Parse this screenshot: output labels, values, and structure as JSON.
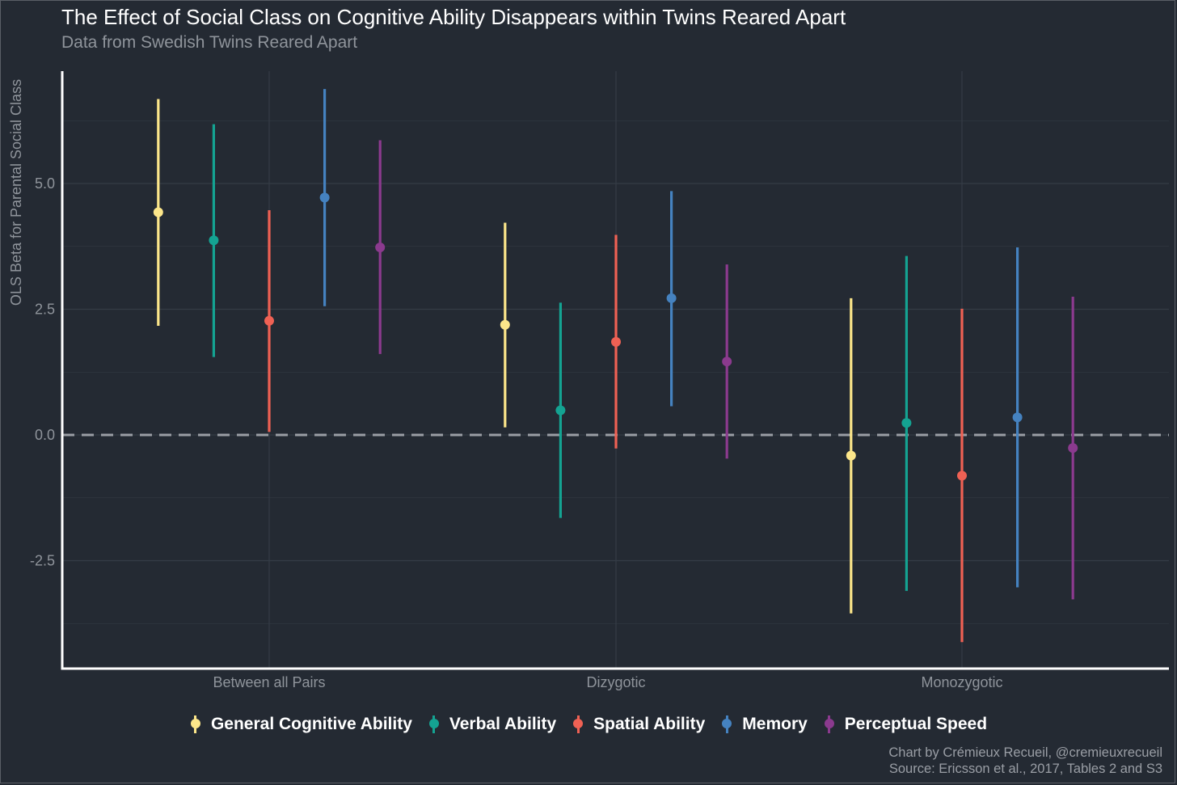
{
  "title": "The Effect of Social Class on Cognitive Ability Disappears within Twins Reared Apart",
  "subtitle": "Data from Swedish Twins Reared Apart",
  "caption": {
    "line1": "Chart by Crémieux Recueil, @cremieuxrecueil",
    "line2": "Source: Ericsson et al., 2017, Tables 2 and S3"
  },
  "colors": {
    "background": "#242a33",
    "grid": "#353c46",
    "axis": "#ffffff",
    "reference_line": "#9a9ea5"
  },
  "chart_data": {
    "type": "scatter",
    "subtype": "point-range (estimate with interval)",
    "title": "The Effect of Social Class on Cognitive Ability Disappears within Twins Reared Apart",
    "subtitle": "Data from Swedish Twins Reared Apart",
    "xlabel": "",
    "ylabel": "OLS Beta for Parental Social Class",
    "categories": [
      "Between all Pairs",
      "Dizygotic",
      "Monozygotic"
    ],
    "ylim": [
      -4.6,
      7.3
    ],
    "yticks": [
      -2.5,
      0.0,
      2.5,
      5.0
    ],
    "ytick_labels": [
      "-2.5",
      "0.0",
      "2.5",
      "5.0"
    ],
    "reference_line": {
      "y": 0,
      "style": "dashed"
    },
    "grid": true,
    "legend_position": "bottom",
    "series": [
      {
        "name": "General Cognitive Ability",
        "color": "#fce68a",
        "estimate": [
          4.43,
          2.19,
          -0.41
        ],
        "lower": [
          2.17,
          0.15,
          -3.55
        ],
        "upper": [
          6.68,
          4.22,
          2.72
        ]
      },
      {
        "name": "Verbal Ability",
        "color": "#14a392",
        "estimate": [
          3.87,
          0.49,
          0.24
        ],
        "lower": [
          1.55,
          -1.65,
          -3.1
        ],
        "upper": [
          6.18,
          2.63,
          3.56
        ]
      },
      {
        "name": "Spatial Ability",
        "color": "#ef6154",
        "estimate": [
          2.27,
          1.85,
          -0.81
        ],
        "lower": [
          0.06,
          -0.27,
          -4.12
        ],
        "upper": [
          4.47,
          3.98,
          2.51
        ]
      },
      {
        "name": "Memory",
        "color": "#4582c0",
        "estimate": [
          4.72,
          2.72,
          0.35
        ],
        "lower": [
          2.56,
          0.57,
          -3.03
        ],
        "upper": [
          6.88,
          4.85,
          3.73
        ]
      },
      {
        "name": "Perceptual Speed",
        "color": "#8b3a8e",
        "estimate": [
          3.73,
          1.46,
          -0.26
        ],
        "lower": [
          1.61,
          -0.47,
          -3.27
        ],
        "upper": [
          5.86,
          3.39,
          2.75
        ]
      }
    ]
  }
}
